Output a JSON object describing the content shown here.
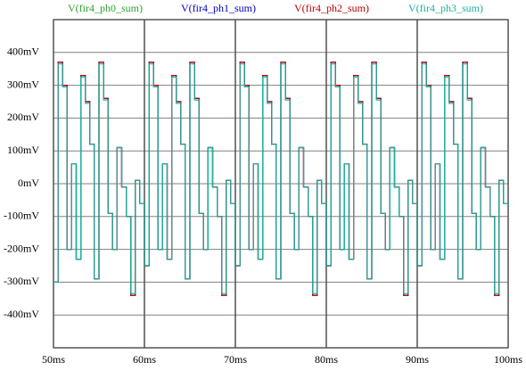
{
  "chart_data": {
    "type": "line",
    "x": [
      50,
      50.5,
      51,
      51.5,
      52,
      52.5,
      53,
      53.5,
      54,
      54.5,
      55,
      55.5,
      56,
      56.5,
      57,
      57.5,
      58,
      58.5,
      59,
      59.5,
      60,
      60.5,
      61,
      61.5,
      62,
      62.5,
      63,
      63.5,
      64,
      64.5,
      65,
      65.5,
      66,
      66.5,
      67,
      67.5,
      68,
      68.5,
      69,
      69.5,
      70,
      70.5,
      71,
      71.5,
      72,
      72.5,
      73,
      73.5,
      74,
      74.5,
      75,
      75.5,
      76,
      76.5,
      77,
      77.5,
      78,
      78.5,
      79,
      79.5,
      80,
      80.5,
      81,
      81.5,
      82,
      82.5,
      83,
      83.5,
      84,
      84.5,
      85,
      85.5,
      86,
      86.5,
      87,
      87.5,
      88,
      88.5,
      89,
      89.5,
      90,
      90.5,
      91,
      91.5,
      92,
      92.5,
      93,
      93.5,
      94,
      94.5,
      95,
      95.5,
      96,
      96.5,
      97,
      97.5,
      98,
      98.5,
      99,
      99.5,
      100
    ],
    "series": [
      {
        "name": "V(fir4_ph0_sum)",
        "color": "#30a030",
        "values": [
          -300,
          370,
          300,
          -200,
          60,
          -230,
          330,
          250,
          120,
          -290,
          370,
          260,
          -90,
          -200,
          110,
          -10,
          -100,
          -340,
          10,
          -60,
          -250,
          370,
          300,
          -200,
          60,
          -230,
          330,
          250,
          120,
          -290,
          370,
          260,
          -90,
          -200,
          110,
          -10,
          -100,
          -340,
          10,
          -60,
          -250,
          370,
          300,
          -200,
          60,
          -230,
          330,
          250,
          120,
          -290,
          370,
          260,
          -90,
          -200,
          110,
          -10,
          -100,
          -340,
          10,
          -60,
          -250,
          370,
          300,
          -200,
          60,
          -230,
          330,
          250,
          120,
          -290,
          370,
          260,
          -90,
          -200,
          110,
          -10,
          -100,
          -340,
          10,
          -60,
          -250,
          370,
          300,
          -200,
          60,
          -230,
          330,
          250,
          120,
          -290,
          370,
          260,
          -90,
          -200,
          110,
          -10,
          -100,
          -340,
          10,
          -60,
          -70
        ]
      },
      {
        "name": "V(fir4_ph1_sum)",
        "color": "#0000c0",
        "values": [
          -300,
          370,
          300,
          -200,
          60,
          -230,
          330,
          250,
          120,
          -290,
          370,
          260,
          -90,
          -200,
          110,
          -10,
          -100,
          -340,
          10,
          -60,
          -250,
          370,
          300,
          -200,
          60,
          -230,
          330,
          250,
          120,
          -290,
          370,
          260,
          -90,
          -200,
          110,
          -10,
          -100,
          -340,
          10,
          -60,
          -250,
          370,
          300,
          -200,
          60,
          -230,
          330,
          250,
          120,
          -290,
          370,
          260,
          -90,
          -200,
          110,
          -10,
          -100,
          -340,
          10,
          -60,
          -250,
          370,
          300,
          -200,
          60,
          -230,
          330,
          250,
          120,
          -290,
          370,
          260,
          -90,
          -200,
          110,
          -10,
          -100,
          -340,
          10,
          -60,
          -250,
          370,
          300,
          -200,
          60,
          -230,
          330,
          250,
          120,
          -290,
          370,
          260,
          -90,
          -200,
          110,
          -10,
          -100,
          -340,
          10,
          -60,
          -70
        ]
      },
      {
        "name": "V(fir4_ph2_sum)",
        "color": "#c00000",
        "values": [
          -300,
          370,
          300,
          -200,
          60,
          -230,
          330,
          250,
          120,
          -290,
          370,
          260,
          -90,
          -200,
          110,
          -10,
          -100,
          -340,
          10,
          -60,
          -250,
          370,
          300,
          -200,
          60,
          -230,
          330,
          250,
          120,
          -290,
          370,
          260,
          -90,
          -200,
          110,
          -10,
          -100,
          -340,
          10,
          -60,
          -250,
          370,
          300,
          -200,
          60,
          -230,
          330,
          250,
          120,
          -290,
          370,
          260,
          -90,
          -200,
          110,
          -10,
          -100,
          -340,
          10,
          -60,
          -250,
          370,
          300,
          -200,
          60,
          -230,
          330,
          250,
          120,
          -290,
          370,
          260,
          -90,
          -200,
          110,
          -10,
          -100,
          -340,
          10,
          -60,
          -250,
          370,
          300,
          -200,
          60,
          -230,
          330,
          250,
          120,
          -290,
          370,
          260,
          -90,
          -200,
          110,
          -10,
          -100,
          -340,
          10,
          -60,
          -70
        ]
      },
      {
        "name": "V(fir4_ph3_sum)",
        "color": "#20b0a0",
        "values": [
          -300,
          365,
          295,
          -200,
          60,
          -230,
          325,
          245,
          120,
          -290,
          365,
          255,
          -90,
          -200,
          110,
          -10,
          -100,
          -335,
          10,
          -60,
          -250,
          365,
          295,
          -200,
          60,
          -230,
          325,
          245,
          120,
          -290,
          365,
          255,
          -90,
          -200,
          110,
          -10,
          -100,
          -335,
          10,
          -60,
          -250,
          365,
          295,
          -200,
          60,
          -230,
          325,
          245,
          120,
          -290,
          365,
          255,
          -90,
          -200,
          110,
          -10,
          -100,
          -335,
          10,
          -60,
          -250,
          365,
          295,
          -200,
          60,
          -230,
          325,
          245,
          120,
          -290,
          365,
          255,
          -90,
          -200,
          110,
          -10,
          -100,
          -335,
          10,
          -60,
          -250,
          365,
          295,
          -200,
          60,
          -230,
          325,
          245,
          120,
          -290,
          365,
          255,
          -90,
          -200,
          110,
          -10,
          -100,
          -335,
          10,
          -60,
          -70
        ]
      }
    ],
    "xlim": [
      50,
      100
    ],
    "xticks": [
      {
        "value": 50,
        "label": "50ms"
      },
      {
        "value": 60,
        "label": "60ms"
      },
      {
        "value": 70,
        "label": "70ms"
      },
      {
        "value": 80,
        "label": "80ms"
      },
      {
        "value": 90,
        "label": "90ms"
      },
      {
        "value": 100,
        "label": "100ms"
      }
    ],
    "ylim": [
      -500,
      500
    ],
    "yticks": [
      {
        "value": -400,
        "label": "-400mV"
      },
      {
        "value": -300,
        "label": "-300mV"
      },
      {
        "value": -200,
        "label": "-200mV"
      },
      {
        "value": -100,
        "label": "-100mV"
      },
      {
        "value": 0,
        "label": "0mV"
      },
      {
        "value": 100,
        "label": "100mV"
      },
      {
        "value": 200,
        "label": "200mV"
      },
      {
        "value": 300,
        "label": "300mV"
      },
      {
        "value": 400,
        "label": "400mV"
      }
    ],
    "grid": true,
    "step": true
  }
}
